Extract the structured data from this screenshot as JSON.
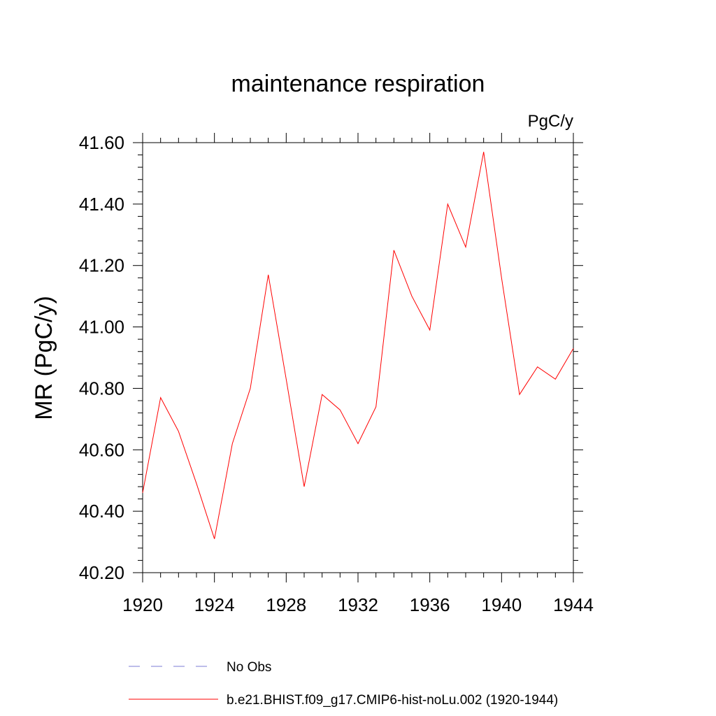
{
  "chart_data": {
    "type": "line",
    "title": "maintenance respiration",
    "units_label": "PgC/y",
    "ylabel": "MR  (PgC/y)",
    "xlabel": "",
    "xlim": [
      1920,
      1944
    ],
    "ylim": [
      40.2,
      41.6
    ],
    "x_ticks": [
      1920,
      1924,
      1928,
      1932,
      1936,
      1940,
      1944
    ],
    "y_ticks": [
      "40.20",
      "40.40",
      "40.60",
      "40.80",
      "41.00",
      "41.20",
      "41.40",
      "41.60"
    ],
    "grid": false,
    "series": [
      {
        "name": "b.e21.BHIST.f09_g17.CMIP6-hist-noLu.002 (1920-1944)",
        "color": "#ff0000",
        "style": "solid",
        "x": [
          1920,
          1921,
          1922,
          1923,
          1924,
          1925,
          1926,
          1927,
          1928,
          1929,
          1930,
          1931,
          1932,
          1933,
          1934,
          1935,
          1936,
          1937,
          1938,
          1939,
          1940,
          1941,
          1942,
          1943,
          1944
        ],
        "y": [
          40.46,
          40.77,
          40.66,
          40.49,
          40.31,
          40.62,
          40.8,
          41.17,
          40.83,
          40.48,
          40.78,
          40.73,
          40.62,
          40.74,
          41.25,
          41.1,
          40.99,
          41.4,
          41.26,
          41.57,
          41.16,
          40.78,
          40.87,
          40.83,
          40.93
        ]
      }
    ],
    "legend": {
      "placement": "bottom",
      "entries": [
        {
          "label": "No Obs",
          "color": "#7b7bd6",
          "style": "dashed"
        },
        {
          "label": "b.e21.BHIST.f09_g17.CMIP6-hist-noLu.002 (1920-1944)",
          "color": "#ff0000",
          "style": "solid"
        }
      ]
    }
  }
}
